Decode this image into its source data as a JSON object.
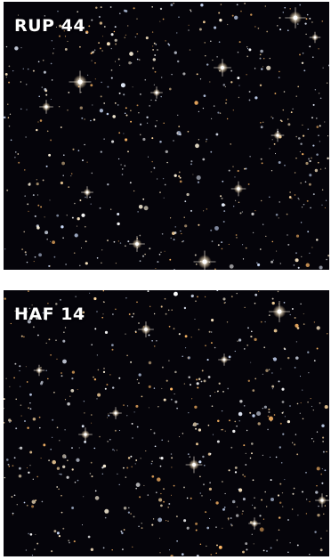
{
  "panels": [
    {
      "label": "RUP 44",
      "background": "#05040a"
    },
    {
      "label": "HAF 14",
      "background": "#05040a"
    }
  ],
  "star_colors": [
    "#fff4dc",
    "#ffd9a0",
    "#ffb866",
    "#ffe9c4",
    "#e8f0ff",
    "#cfe0ff",
    "#ffffff"
  ]
}
